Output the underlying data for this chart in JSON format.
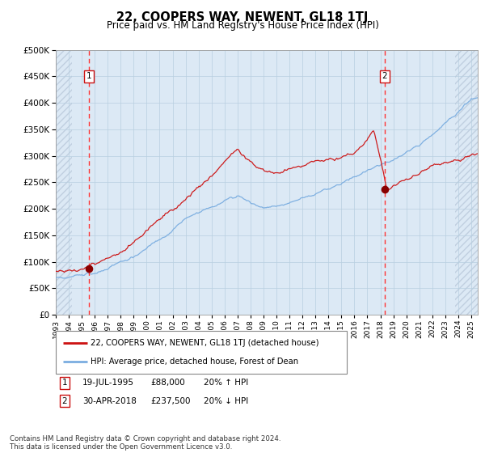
{
  "title": "22, COOPERS WAY, NEWENT, GL18 1TJ",
  "subtitle": "Price paid vs. HM Land Registry's House Price Index (HPI)",
  "legend_line1": "22, COOPERS WAY, NEWENT, GL18 1TJ (detached house)",
  "legend_line2": "HPI: Average price, detached house, Forest of Dean",
  "annotation1_label": "1",
  "annotation1_date": "19-JUL-1995",
  "annotation1_price": "£88,000",
  "annotation1_hpi": "20% ↑ HPI",
  "annotation2_label": "2",
  "annotation2_date": "30-APR-2018",
  "annotation2_price": "£237,500",
  "annotation2_hpi": "20% ↓ HPI",
  "footer": "Contains HM Land Registry data © Crown copyright and database right 2024.\nThis data is licensed under the Open Government Licence v3.0.",
  "hpi_color": "#7aade0",
  "price_color": "#cc1111",
  "dot_color": "#880000",
  "vline_color": "#ff3333",
  "bg_color": "#dce9f5",
  "hatch_color": "#c0cfe0",
  "grid_color": "#b8cfe0",
  "ylim": [
    0,
    500000
  ],
  "xlim_start": 1993.0,
  "xlim_end": 2025.5,
  "marker1_x": 1995.54,
  "marker1_y": 88000,
  "marker2_x": 2018.33,
  "marker2_y": 237500
}
